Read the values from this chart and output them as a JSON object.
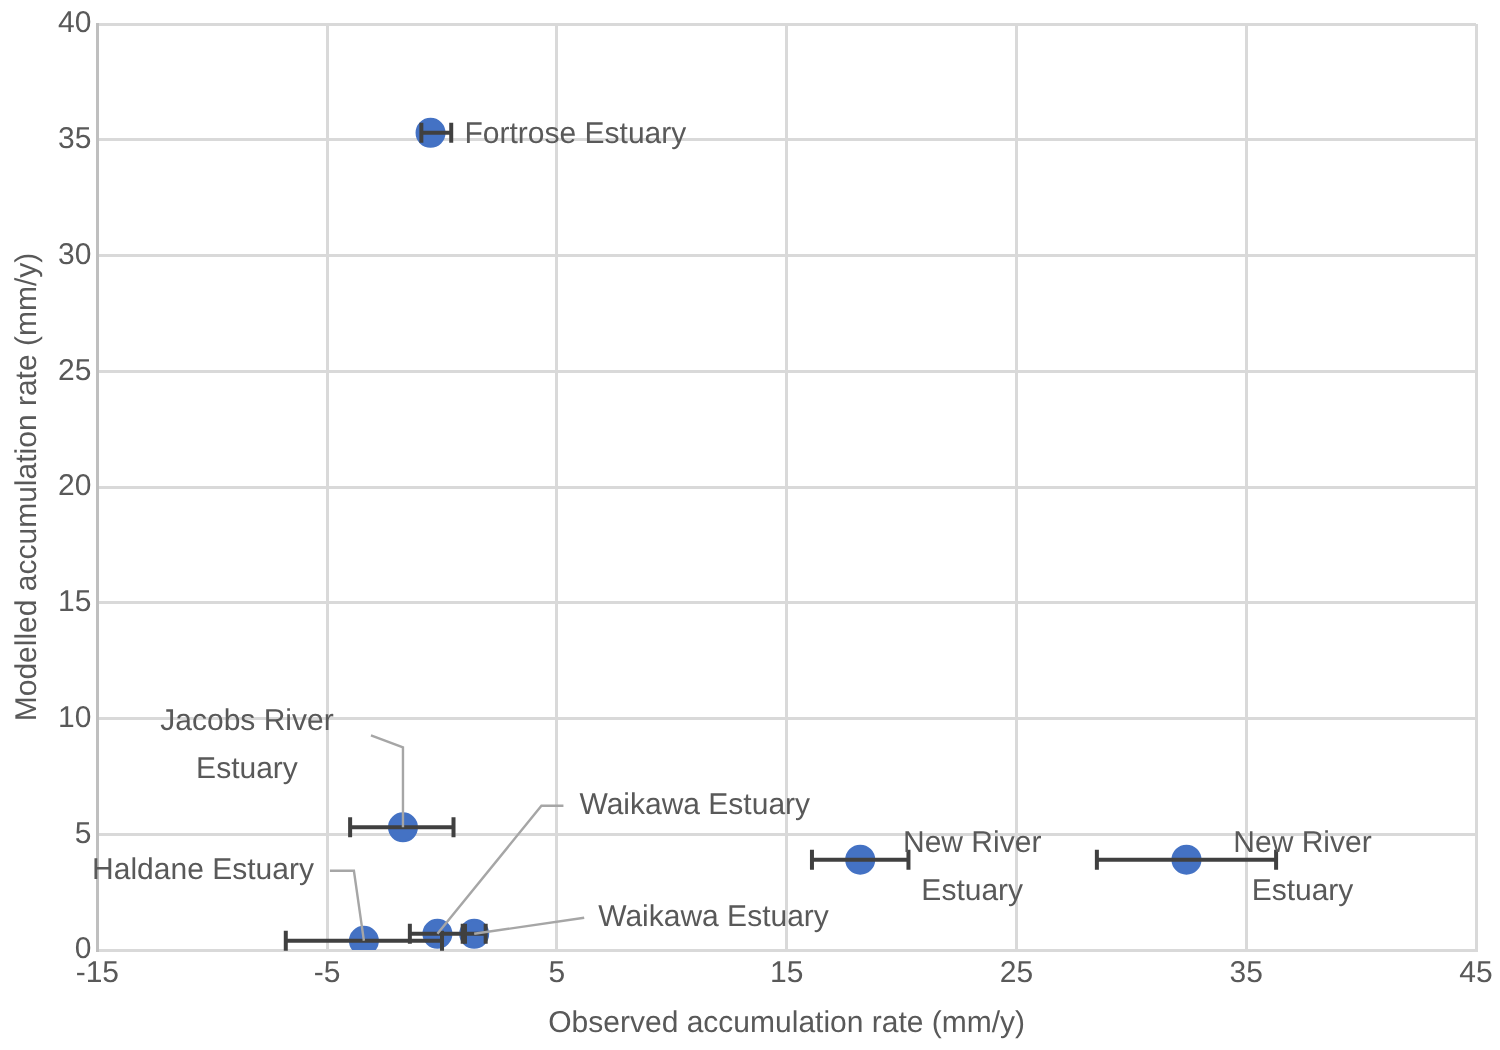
{
  "chart_data": {
    "type": "scatter",
    "xlabel": "Observed accumulation rate (mm/y)",
    "ylabel": "Modelled accumulation rate (mm/y)",
    "x": [
      -0.5,
      -1.7,
      -3.4,
      -0.2,
      1.4,
      18.2,
      32.4
    ],
    "series": [
      {
        "color": "#4472c4",
        "values": [
          35.3,
          5.3,
          0.4,
          0.7,
          0.7,
          3.9,
          3.9
        ],
        "xerrors": [
          [
            -0.9,
            0.4
          ],
          [
            -4.0,
            0.5
          ],
          3.4,
          1.2,
          0.5,
          2.1,
          3.9
        ]
      }
    ],
    "xlim": [
      -15,
      45
    ],
    "xticks": [
      -15,
      -5,
      5,
      15,
      25,
      35,
      45
    ],
    "ylim": [
      0,
      40
    ],
    "yticks": [
      0,
      5,
      10,
      15,
      20,
      25,
      30,
      35,
      40
    ],
    "grid": true,
    "legend": false,
    "marker": "circle",
    "annotations": [
      {
        "text": "Fortrose Estuary",
        "x": -0.5,
        "y": 35.3
      },
      {
        "text": "Jacobs River Estuary",
        "x": -1.7,
        "y": 5.3
      },
      {
        "text": "Haldane Estuary",
        "x": -3.4,
        "y": 0.4
      },
      {
        "text": "Waikawa Estuary",
        "x": -0.2,
        "y": 0.7
      },
      {
        "text": "Waikawa Estuary",
        "x": 1.4,
        "y": 0.7
      },
      {
        "text": "New River Estuary",
        "x": 18.2,
        "y": 3.9
      },
      {
        "text": "New River Estuary",
        "x": 32.4,
        "y": 3.9
      }
    ]
  }
}
